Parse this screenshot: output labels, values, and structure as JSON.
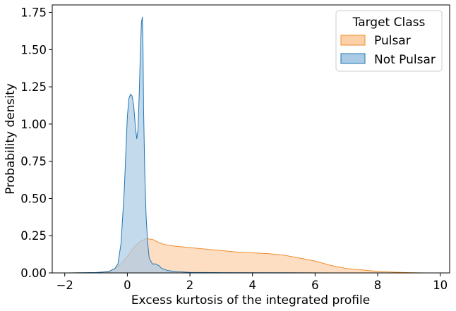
{
  "chart_data": {
    "type": "area",
    "xlabel": "Excess kurtosis of the integrated profile",
    "ylabel": "Probability density",
    "xlim": [
      -2.4,
      10.3
    ],
    "ylim": [
      0,
      1.8
    ],
    "x_ticks": [
      -2,
      0,
      2,
      4,
      6,
      8,
      10
    ],
    "y_ticks": [
      0.0,
      0.25,
      0.5,
      0.75,
      1.0,
      1.25,
      1.5,
      1.75
    ],
    "grid": false,
    "legend": {
      "title": "Target Class",
      "placement": "top-right",
      "entries": [
        "Pulsar",
        "Not Pulsar"
      ]
    },
    "series": [
      {
        "name": "Pulsar",
        "color": "#f28e2b",
        "fill": "#fdd0a8",
        "points": [
          [
            -1.8,
            0
          ],
          [
            -1.0,
            0.002
          ],
          [
            -0.6,
            0.01
          ],
          [
            -0.4,
            0.03
          ],
          [
            -0.2,
            0.06
          ],
          [
            0.0,
            0.11
          ],
          [
            0.2,
            0.17
          ],
          [
            0.4,
            0.21
          ],
          [
            0.6,
            0.23
          ],
          [
            0.8,
            0.225
          ],
          [
            1.0,
            0.205
          ],
          [
            1.2,
            0.19
          ],
          [
            1.5,
            0.18
          ],
          [
            2.0,
            0.17
          ],
          [
            2.5,
            0.16
          ],
          [
            3.0,
            0.15
          ],
          [
            3.5,
            0.14
          ],
          [
            4.0,
            0.135
          ],
          [
            4.5,
            0.13
          ],
          [
            5.0,
            0.12
          ],
          [
            5.5,
            0.1
          ],
          [
            6.0,
            0.08
          ],
          [
            6.5,
            0.05
          ],
          [
            7.0,
            0.03
          ],
          [
            7.5,
            0.02
          ],
          [
            8.0,
            0.01
          ],
          [
            8.5,
            0.005
          ],
          [
            9.0,
            0.002
          ],
          [
            9.5,
            0
          ]
        ]
      },
      {
        "name": "Not Pulsar",
        "color": "#1f77b4",
        "fill": "#a9cbe5",
        "points": [
          [
            -1.9,
            0
          ],
          [
            -1.0,
            0.003
          ],
          [
            -0.6,
            0.008
          ],
          [
            -0.4,
            0.03
          ],
          [
            -0.3,
            0.06
          ],
          [
            -0.2,
            0.2
          ],
          [
            -0.1,
            0.55
          ],
          [
            -0.05,
            0.8
          ],
          [
            0.0,
            1.05
          ],
          [
            0.05,
            1.17
          ],
          [
            0.1,
            1.2
          ],
          [
            0.15,
            1.19
          ],
          [
            0.2,
            1.13
          ],
          [
            0.25,
            1.0
          ],
          [
            0.3,
            0.9
          ],
          [
            0.34,
            0.96
          ],
          [
            0.38,
            1.2
          ],
          [
            0.42,
            1.5
          ],
          [
            0.45,
            1.68
          ],
          [
            0.48,
            1.72
          ],
          [
            0.5,
            1.5
          ],
          [
            0.52,
            1.1
          ],
          [
            0.56,
            0.65
          ],
          [
            0.6,
            0.38
          ],
          [
            0.65,
            0.2
          ],
          [
            0.7,
            0.1
          ],
          [
            0.8,
            0.06
          ],
          [
            0.9,
            0.06
          ],
          [
            1.0,
            0.05
          ],
          [
            1.1,
            0.03
          ],
          [
            1.3,
            0.015
          ],
          [
            1.6,
            0.008
          ],
          [
            2.0,
            0.004
          ],
          [
            3.0,
            0.002
          ],
          [
            5.0,
            0.001
          ],
          [
            6.5,
            0
          ]
        ]
      }
    ]
  }
}
